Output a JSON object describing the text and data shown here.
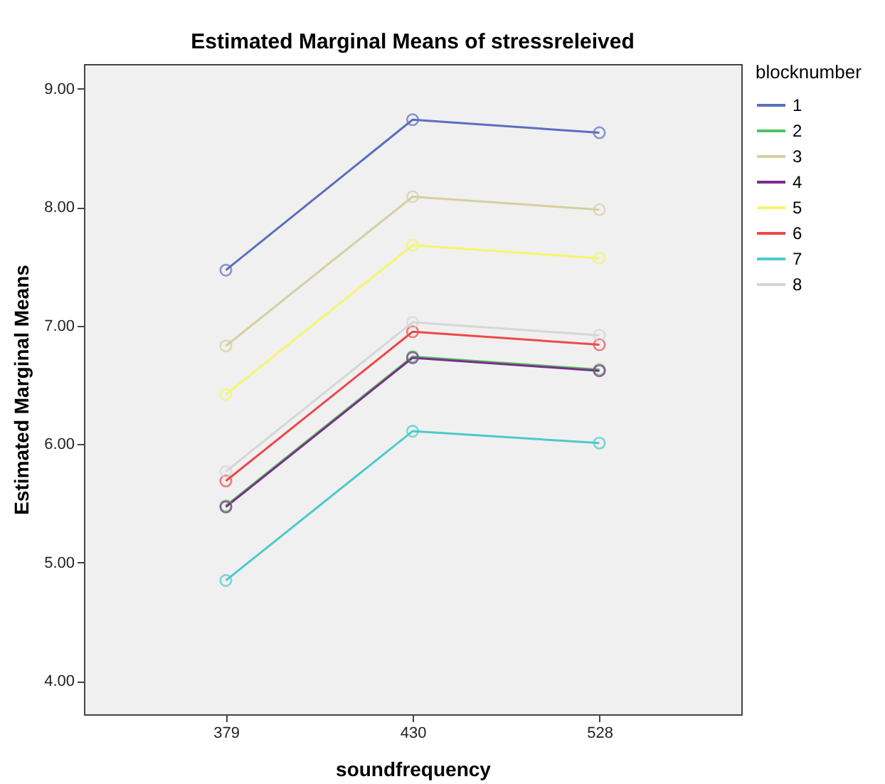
{
  "chart_data": {
    "type": "line",
    "title": "Estimated Marginal Means of stressreleived",
    "xlabel": "soundfrequency",
    "ylabel": "Estimated Marginal Means",
    "legend_title": "blocknumber",
    "categories": [
      "379",
      "430",
      "528"
    ],
    "series": [
      {
        "name": "1",
        "color": "#5b6fbf",
        "values": [
          7.47,
          8.74,
          8.63
        ]
      },
      {
        "name": "2",
        "color": "#4fc45f",
        "values": [
          5.48,
          6.74,
          6.63
        ]
      },
      {
        "name": "3",
        "color": "#d4d0a0",
        "values": [
          6.83,
          8.09,
          7.98
        ]
      },
      {
        "name": "4",
        "color": "#7b2d8b",
        "values": [
          5.47,
          6.73,
          6.62
        ]
      },
      {
        "name": "5",
        "color": "#f5f56a",
        "values": [
          6.42,
          7.68,
          7.57
        ]
      },
      {
        "name": "6",
        "color": "#f04848",
        "values": [
          5.69,
          6.95,
          6.84
        ]
      },
      {
        "name": "7",
        "color": "#4ccaca",
        "values": [
          4.85,
          6.11,
          6.01
        ]
      },
      {
        "name": "8",
        "color": "#d6d6d6",
        "values": [
          5.77,
          7.03,
          6.92
        ]
      }
    ],
    "ylim": [
      3.72,
      9.21
    ],
    "yticks": [
      {
        "value": 4,
        "label": "4.00"
      },
      {
        "value": 5,
        "label": "5.00"
      },
      {
        "value": 6,
        "label": "6.00"
      },
      {
        "value": 7,
        "label": "7.00"
      },
      {
        "value": 8,
        "label": "8.00"
      },
      {
        "value": 9,
        "label": "9.00"
      }
    ],
    "grid": false,
    "legend": "top right",
    "marker": "circle",
    "line_style": "solid"
  }
}
